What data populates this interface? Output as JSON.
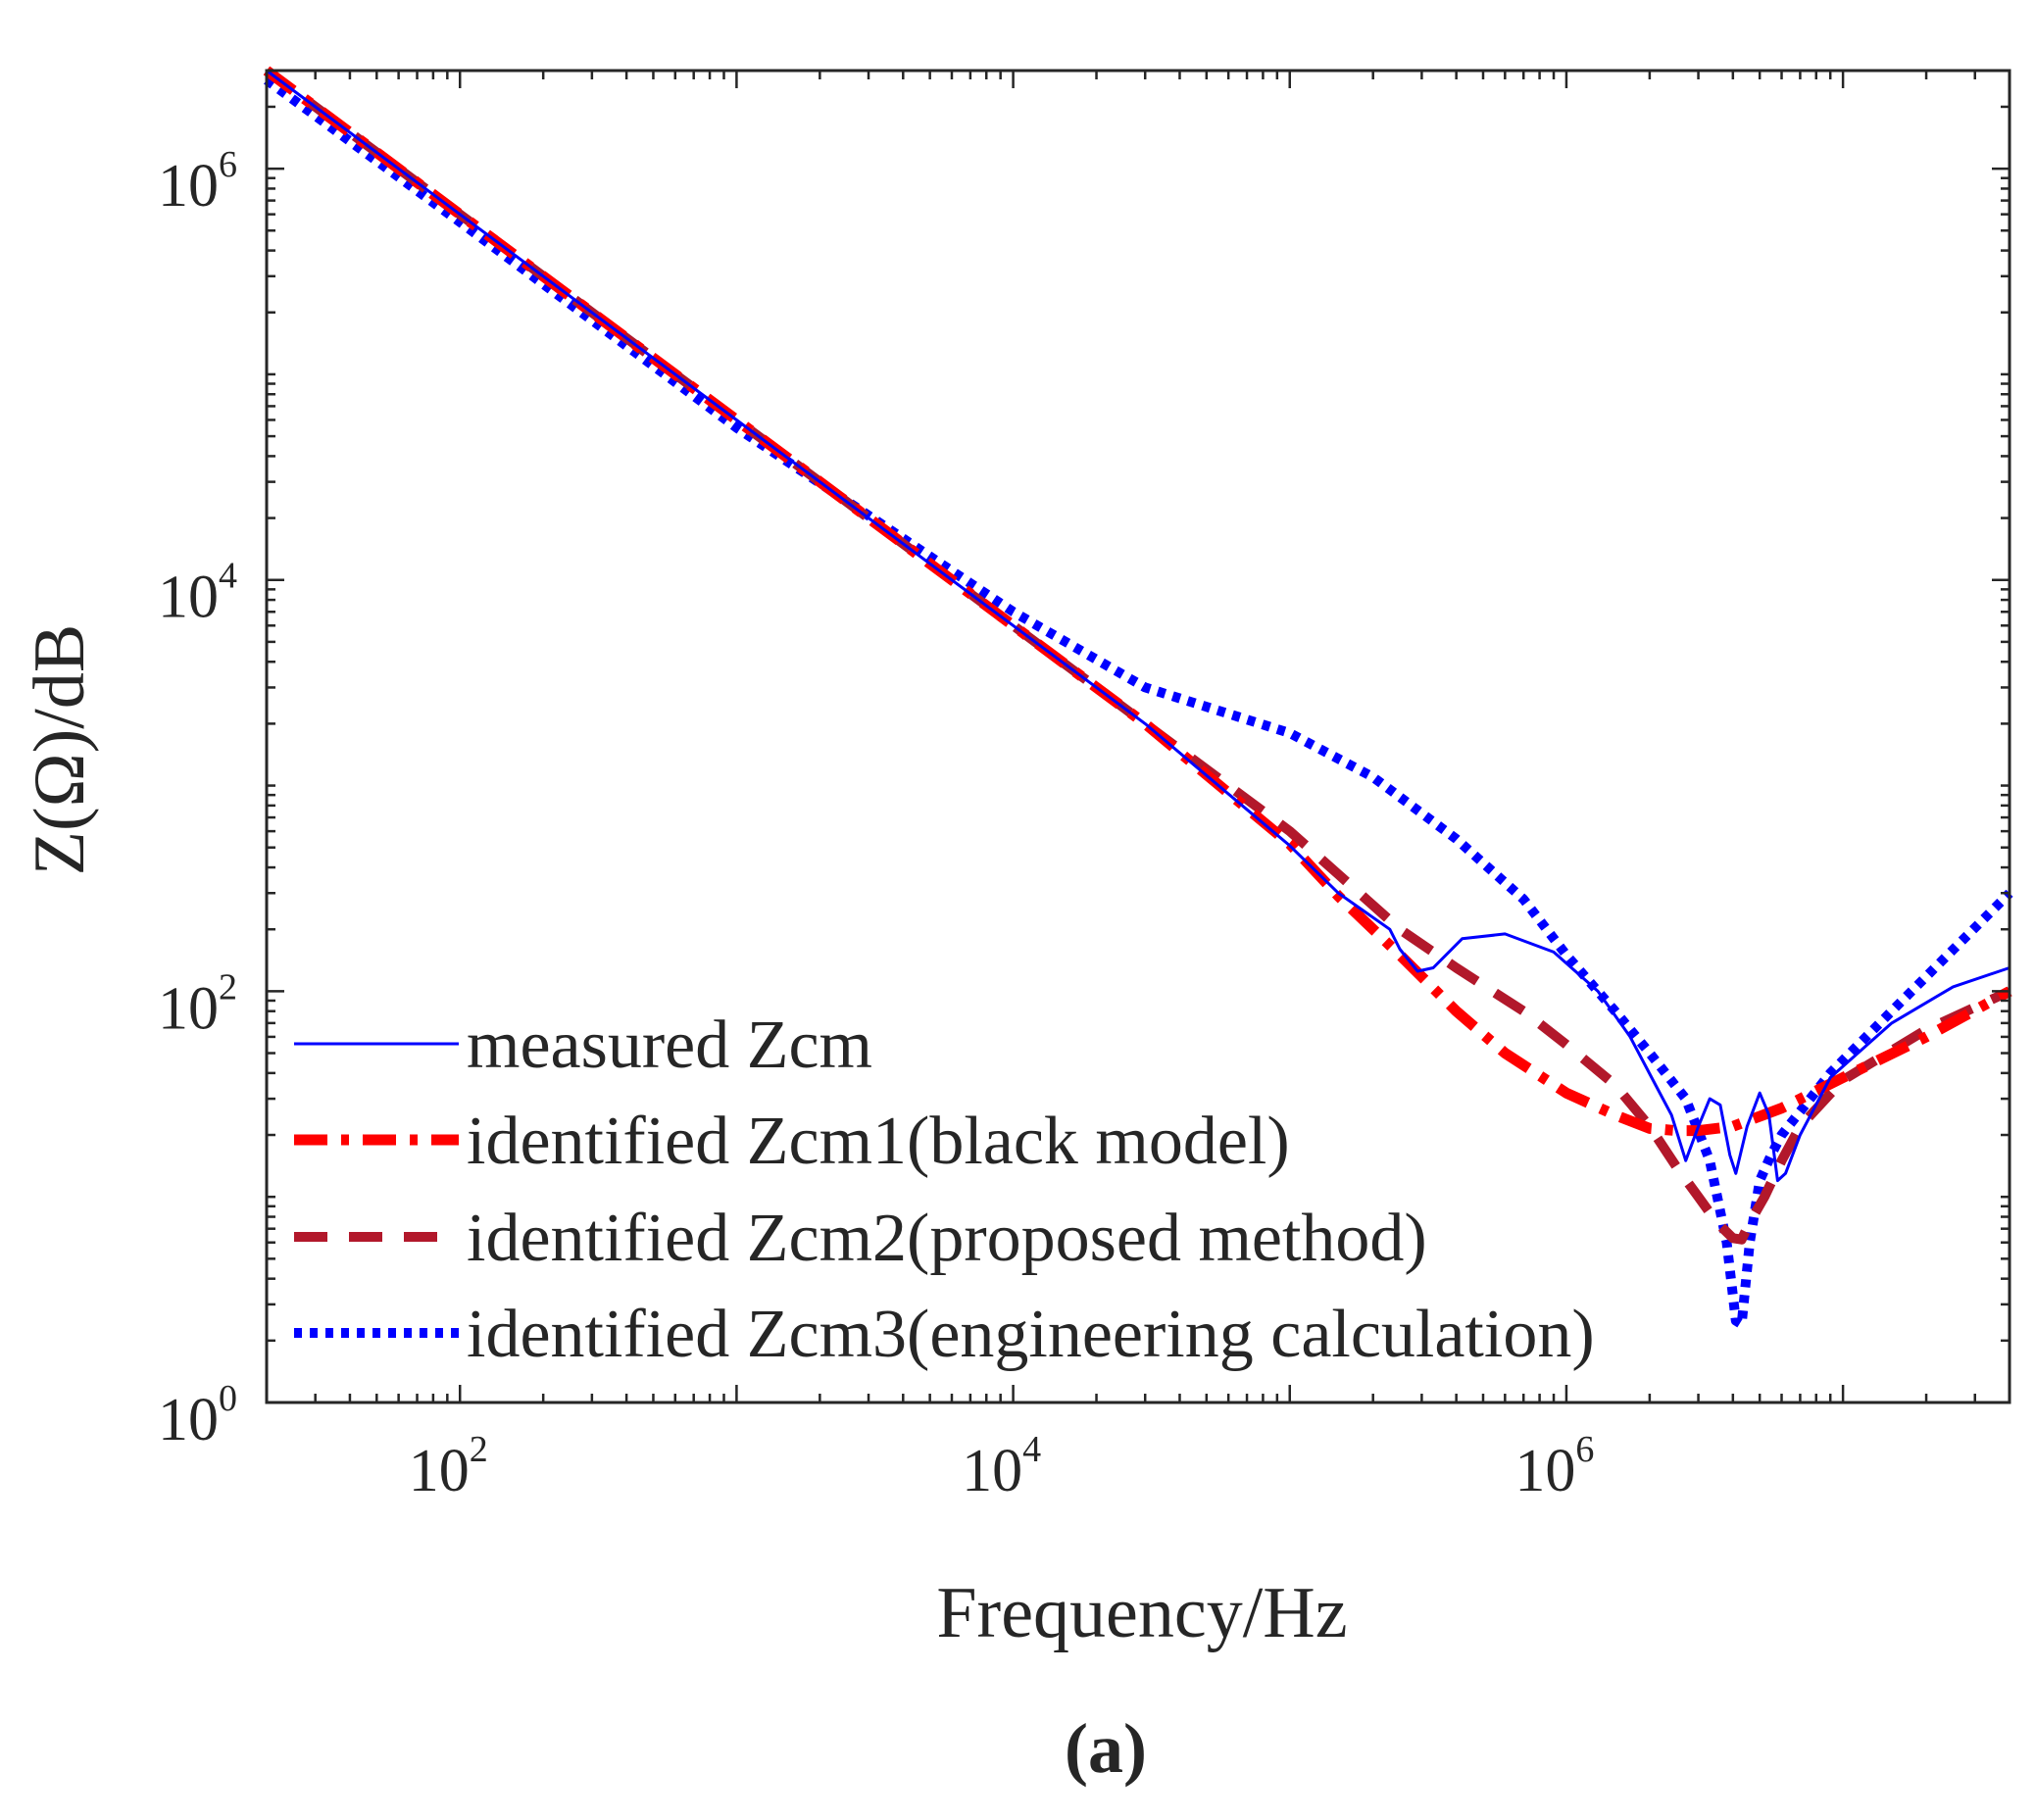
{
  "figure_label": "(a)",
  "caption_letter": "a",
  "colors": {
    "measured": "#0000ff",
    "zcm1": "#ff0000",
    "zcm2": "#b2182b",
    "zcm3": "#0000ff",
    "axis": "#262626"
  },
  "chart_data": {
    "type": "line",
    "title": "",
    "xlabel": "Frequency/Hz",
    "ylabel": "Z(Ω)/dB",
    "xscale": "log",
    "yscale": "log",
    "xlim": [
      20,
      40000000
    ],
    "ylim": [
      1,
      3000000
    ],
    "grid": false,
    "legend_position": "bottom-left",
    "x_ticks": [
      {
        "value": 100,
        "base": "10",
        "exp": "2"
      },
      {
        "value": 10000,
        "base": "10",
        "exp": "4"
      },
      {
        "value": 1000000,
        "base": "10",
        "exp": "6"
      }
    ],
    "y_ticks": [
      {
        "value": 1,
        "base": "10",
        "exp": "0"
      },
      {
        "value": 100,
        "base": "10",
        "exp": "2"
      },
      {
        "value": 10000,
        "base": "10",
        "exp": "4"
      },
      {
        "value": 1000000,
        "base": "10",
        "exp": "6"
      }
    ],
    "series": [
      {
        "name": "measured Zcm",
        "style": "solid",
        "x": [
          20,
          100,
          1000,
          10000,
          30000,
          100000,
          150000,
          230000,
          250000,
          290000,
          330000,
          420000,
          600000,
          900000,
          1300000,
          1700000,
          2100000,
          2400000,
          2700000,
          3000000,
          3300000,
          3600000,
          3900000,
          4100000,
          4500000,
          5000000,
          5400000,
          5800000,
          6200000,
          7000000,
          9000000,
          15000000,
          25000000,
          40000000
        ],
        "values": [
          3000000,
          600000,
          60000,
          6000,
          2000,
          510,
          300,
          200,
          160,
          125,
          130,
          180,
          190,
          155,
          100,
          60,
          35,
          25,
          15,
          22,
          30,
          28,
          16,
          13,
          22,
          32,
          25,
          12,
          13,
          20,
          38,
          70,
          105,
          130
        ]
      },
      {
        "name": "identified Zcm1(black model)",
        "style": "dashdot",
        "x": [
          20,
          100,
          1000,
          10000,
          30000,
          100000,
          150000,
          250000,
          400000,
          600000,
          1000000,
          1500000,
          2000000,
          2500000,
          3000000,
          4000000,
          6000000,
          10000000,
          20000000,
          40000000
        ],
        "values": [
          3000000,
          600000,
          60000,
          6000,
          2000,
          520,
          290,
          150,
          80,
          50,
          32,
          25,
          21.5,
          21,
          21,
          22,
          27,
          38,
          60,
          100
        ]
      },
      {
        "name": "identified Zcm2(proposed method)",
        "style": "dashed",
        "x": [
          20,
          100,
          1000,
          10000,
          30000,
          100000,
          150000,
          250000,
          400000,
          700000,
          1000000,
          1500000,
          2000000,
          2500000,
          3000000,
          3500000,
          4000000,
          4300000,
          4600000,
          5200000,
          6000000,
          7000000,
          10000000,
          20000000,
          40000000
        ],
        "values": [
          3000000,
          600000,
          60000,
          6000,
          2000,
          600,
          370,
          200,
          130,
          80,
          55,
          35,
          22,
          14,
          10,
          7.5,
          6.3,
          6.2,
          7.5,
          10,
          15,
          22,
          37,
          65,
          100
        ]
      },
      {
        "name": "identified Zcm3(engineering calculation)",
        "style": "dotted",
        "x": [
          20,
          100,
          1000,
          10000,
          30000,
          100000,
          200000,
          400000,
          700000,
          1000000,
          1500000,
          2000000,
          2700000,
          3300000,
          3800000,
          4100000,
          4300000,
          4600000,
          5000000,
          5500000,
          6000000,
          7000000,
          9000000,
          15000000,
          40000000
        ],
        "values": [
          2700000,
          550000,
          55000,
          7000,
          3000,
          1800,
          1100,
          550,
          280,
          150,
          80,
          50,
          30,
          15,
          6,
          2.5,
          2.4,
          6,
          12,
          16,
          20,
          26,
          40,
          80,
          300
        ]
      }
    ]
  }
}
